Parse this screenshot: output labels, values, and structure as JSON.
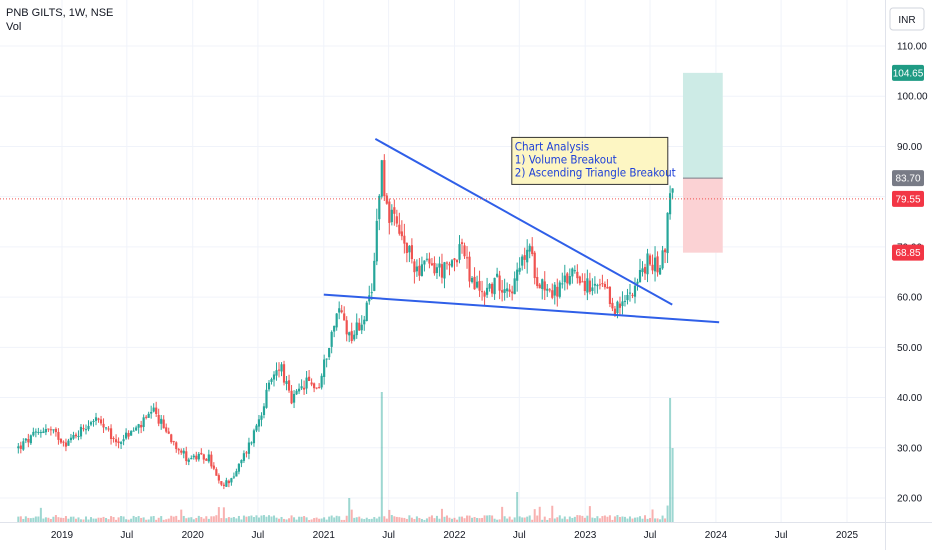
{
  "header": {
    "symbol_line": "PNB GILTS, 1W, NSE",
    "indicator": "Vol"
  },
  "currency_button": "INR",
  "colors": {
    "up": "#26a69a",
    "down": "#ef5350",
    "trendline": "#2f5fe8",
    "target_zone": "#cdebe6",
    "stop_zone": "#fbd2d4",
    "target_tag": "#1f9b84",
    "entry_tag": "#787b86",
    "stop_tag": "#f23645"
  },
  "annotation": {
    "lines": [
      "Chart Analysis",
      "1) Volume Breakout",
      "2) Ascending Triangle Breakout"
    ]
  },
  "price_labels": {
    "target": "104.65",
    "entry": "83.70",
    "last": "79.55",
    "stop": "68.85"
  },
  "chart_data": {
    "type": "candlestick",
    "ylim": [
      15,
      113
    ],
    "y_ticks": [
      "110.00",
      "100.00",
      "90.00",
      "80.00",
      "70.00",
      "60.00",
      "50.00",
      "40.00",
      "30.00",
      "20.00"
    ],
    "y_tick_values": [
      110,
      100,
      90,
      80,
      70,
      60,
      50,
      40,
      30,
      20
    ],
    "x_ticks": [
      "2019",
      "Jul",
      "2020",
      "Jul",
      "2021",
      "Jul",
      "2022",
      "Jul",
      "2023",
      "Jul",
      "2024",
      "Jul",
      "2025"
    ],
    "x_tick_dates": [
      "2019-01-01",
      "2019-07-01",
      "2020-01-01",
      "2020-07-01",
      "2021-01-01",
      "2021-07-01",
      "2022-01-01",
      "2022-07-01",
      "2023-01-01",
      "2023-07-01",
      "2024-01-01",
      "2024-07-01",
      "2025-01-01"
    ],
    "anchors": [
      [
        "2018-09-01",
        30
      ],
      [
        "2018-11-15",
        34
      ],
      [
        "2019-01-15",
        31
      ],
      [
        "2019-04-01",
        36
      ],
      [
        "2019-06-01",
        31
      ],
      [
        "2019-08-01",
        34
      ],
      [
        "2019-09-15",
        37
      ],
      [
        "2019-11-01",
        32
      ],
      [
        "2019-12-15",
        28
      ],
      [
        "2020-02-15",
        28
      ],
      [
        "2020-03-20",
        22
      ],
      [
        "2020-05-01",
        25
      ],
      [
        "2020-06-15",
        32
      ],
      [
        "2020-08-01",
        42
      ],
      [
        "2020-09-01",
        47
      ],
      [
        "2020-10-01",
        39
      ],
      [
        "2020-11-15",
        43
      ],
      [
        "2020-12-20",
        42
      ],
      [
        "2021-01-15",
        51
      ],
      [
        "2021-02-15",
        58
      ],
      [
        "2021-03-15",
        52
      ],
      [
        "2021-04-15",
        55
      ],
      [
        "2021-05-15",
        60
      ],
      [
        "2021-06-01",
        78
      ],
      [
        "2021-06-10",
        88
      ],
      [
        "2021-06-25",
        78
      ],
      [
        "2021-07-20",
        74
      ],
      [
        "2021-08-15",
        70
      ],
      [
        "2021-09-15",
        66
      ],
      [
        "2021-11-01",
        66
      ],
      [
        "2021-12-15",
        65
      ],
      [
        "2022-01-20",
        71
      ],
      [
        "2022-02-15",
        63
      ],
      [
        "2022-03-20",
        61
      ],
      [
        "2022-05-01",
        63
      ],
      [
        "2022-06-15",
        62
      ],
      [
        "2022-07-25",
        70
      ],
      [
        "2022-08-20",
        64
      ],
      [
        "2022-10-01",
        61
      ],
      [
        "2022-11-01",
        62
      ],
      [
        "2022-12-01",
        66
      ],
      [
        "2023-01-15",
        61
      ],
      [
        "2023-02-15",
        62
      ],
      [
        "2023-03-20",
        58
      ],
      [
        "2023-04-15",
        58
      ],
      [
        "2023-05-10",
        62
      ],
      [
        "2023-06-01",
        64
      ],
      [
        "2023-06-25",
        67
      ],
      [
        "2023-07-20",
        66
      ],
      [
        "2023-08-10",
        69
      ],
      [
        "2023-08-25",
        80
      ],
      [
        "2023-09-01",
        82
      ],
      [
        "2023-09-08",
        79.55
      ]
    ],
    "trendlines": [
      {
        "name": "upper-trendline",
        "from": [
          "2021-05-25",
          91.5
        ],
        "to": [
          "2023-09-01",
          58.5
        ]
      },
      {
        "name": "lower-trendline",
        "from": [
          "2021-01-01",
          60.5
        ],
        "to": [
          "2024-01-10",
          55
        ]
      }
    ],
    "position": {
      "start": "2023-10-01",
      "end": "2024-01-20",
      "entry": 83.7,
      "target": 104.65,
      "stop": 68.85,
      "last": 79.55
    },
    "volume_spikes": [
      [
        "2021-06-10",
        0.65
      ],
      [
        "2023-08-25",
        0.62
      ],
      [
        "2023-09-01",
        0.37
      ],
      [
        "2021-03-15",
        0.12
      ],
      [
        "2022-06-25",
        0.15
      ]
    ]
  }
}
